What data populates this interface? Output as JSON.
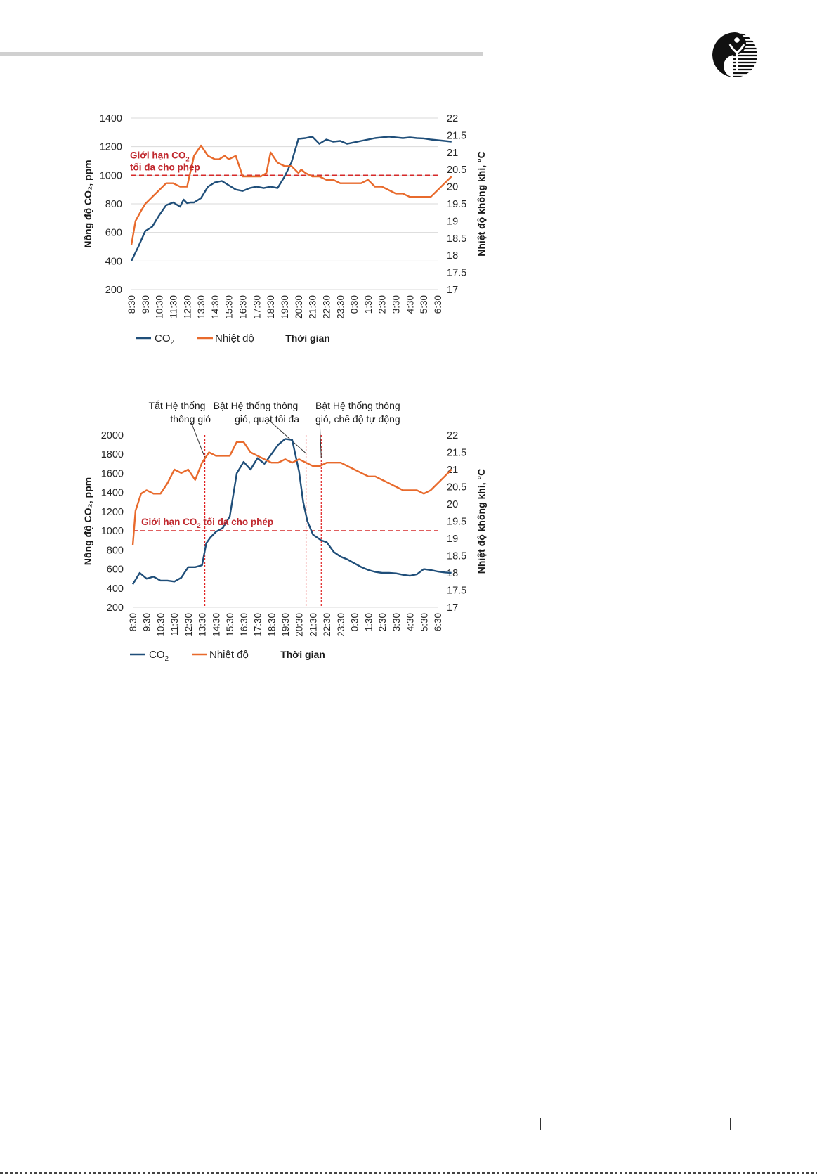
{
  "chart_data": [
    {
      "type": "line",
      "title": "",
      "xlabel": "Thời gian",
      "ylabel": "Nồng độ CO₂, ppm",
      "y2label": "Nhiệt độ không khí, °C",
      "ylim": [
        200,
        1400
      ],
      "yticks": [
        200,
        400,
        600,
        800,
        1000,
        1200,
        1400
      ],
      "y2lim": [
        17,
        22
      ],
      "y2ticks": [
        "17",
        "17.5",
        "18",
        "18.5",
        "19",
        "19.5",
        "20",
        "20.5",
        "21",
        "21.5",
        "22"
      ],
      "x_range": [
        "8:30",
        "6:30"
      ],
      "categories": [
        "8:30",
        "9:30",
        "10:30",
        "11:30",
        "12:30",
        "13:30",
        "14:30",
        "15:30",
        "16:30",
        "17:30",
        "18:30",
        "19:30",
        "20:30",
        "21:30",
        "22:30",
        "23:30",
        "0:30",
        "1:30",
        "2:30",
        "3:30",
        "4:30",
        "5:30",
        "6:30"
      ],
      "grid": "horizontal",
      "legend_position": "bottom-left",
      "limit_line": {
        "value": 1000,
        "axis": "left",
        "label_line1": "Giới hạn CO",
        "label_sub": "2",
        "label_line2": "tối đa cho phép"
      },
      "series": [
        {
          "name": "CO2",
          "axis": "left",
          "color": "#1f4e79",
          "x": [
            0,
            0.5,
            1,
            1.5,
            2,
            2.5,
            3,
            3.5,
            3.75,
            4,
            4.25,
            4.5,
            5,
            5.5,
            6,
            6.5,
            7,
            7.5,
            8,
            8.5,
            9,
            9.5,
            10,
            10.5,
            11,
            11.5,
            12,
            12.5,
            13,
            13.5,
            14,
            14.5,
            15,
            15.5,
            16,
            16.5,
            17,
            17.5,
            18,
            18.5,
            19,
            19.5,
            20,
            20.5,
            21,
            21.5,
            22,
            22.5,
            23
          ],
          "y": [
            400,
            500,
            610,
            640,
            720,
            790,
            810,
            780,
            830,
            805,
            810,
            810,
            840,
            920,
            950,
            960,
            930,
            900,
            890,
            910,
            920,
            910,
            920,
            910,
            990,
            1090,
            1255,
            1260,
            1270,
            1220,
            1250,
            1235,
            1240,
            1220,
            1230,
            1240,
            1250,
            1260,
            1265,
            1270,
            1265,
            1260,
            1265,
            1260,
            1258,
            1250,
            1245,
            1240,
            1235
          ]
        },
        {
          "name": "Nhiệt độ",
          "axis": "right",
          "color": "#e86a2c",
          "x": [
            0,
            0.3,
            0.7,
            1,
            1.5,
            2,
            2.5,
            3,
            3.5,
            4,
            4.5,
            5,
            5.5,
            6,
            6.3,
            6.7,
            7,
            7.5,
            8,
            8.5,
            9,
            9.3,
            9.7,
            10,
            10.5,
            11,
            11.5,
            12,
            12.2,
            12.5,
            13,
            13.5,
            14,
            14.5,
            15,
            15.5,
            16,
            16.5,
            17,
            17.5,
            18,
            18.5,
            19,
            19.5,
            20,
            20.5,
            21,
            21.5,
            22,
            22.5,
            23
          ],
          "y": [
            18.3,
            19.0,
            19.3,
            19.5,
            19.7,
            19.9,
            20.1,
            20.1,
            20.0,
            20.0,
            20.9,
            21.2,
            20.9,
            20.8,
            20.8,
            20.9,
            20.8,
            20.9,
            20.3,
            20.3,
            20.3,
            20.3,
            20.4,
            21.0,
            20.7,
            20.6,
            20.6,
            20.4,
            20.5,
            20.4,
            20.3,
            20.3,
            20.2,
            20.2,
            20.1,
            20.1,
            20.1,
            20.1,
            20.2,
            20.0,
            20.0,
            19.9,
            19.8,
            19.8,
            19.7,
            19.7,
            19.7,
            19.7,
            19.9,
            20.1,
            20.3
          ]
        }
      ]
    },
    {
      "type": "line",
      "title": "",
      "xlabel": "Thời gian",
      "ylabel": "Nồng độ CO₂, ppm",
      "y2label": "Nhiệt độ không khí, °C",
      "ylim": [
        200,
        2000
      ],
      "yticks": [
        200,
        400,
        600,
        800,
        1000,
        1200,
        1400,
        1600,
        1800,
        2000
      ],
      "y2lim": [
        17,
        22
      ],
      "y2ticks": [
        "17",
        "17.5",
        "18",
        "18.5",
        "19",
        "19.5",
        "20",
        "20.5",
        "21",
        "21.5",
        "22"
      ],
      "x_range": [
        "8:30",
        "6:30"
      ],
      "categories": [
        "8:30",
        "9:30",
        "10:30",
        "11:30",
        "12:30",
        "13:30",
        "14:30",
        "15:30",
        "16:30",
        "17:30",
        "18:30",
        "19:30",
        "20:30",
        "21:30",
        "22:30",
        "23:30",
        "0:30",
        "1:30",
        "2:30",
        "3:30",
        "4:30",
        "5:30",
        "6:30"
      ],
      "grid": "none",
      "legend_position": "bottom-left",
      "limit_line": {
        "value": 1000,
        "axis": "left",
        "label_line1": "Giới hạn CO",
        "label_sub": "2",
        "label_line2": " tối đa cho phép"
      },
      "events": [
        {
          "x": 5.2,
          "label_line1": "Tắt Hệ thống",
          "label_line2": "thông gió"
        },
        {
          "x": 12.5,
          "label_line1": "Bật Hệ thống thông",
          "label_line2": "gió, quạt tối đa"
        },
        {
          "x": 13.6,
          "label_line1": "Bật Hệ thống thông",
          "label_line2": "gió, chế độ tự động"
        }
      ],
      "series": [
        {
          "name": "CO2",
          "axis": "left",
          "color": "#1f4e79",
          "x": [
            0,
            0.5,
            1,
            1.5,
            2,
            2.5,
            3,
            3.5,
            4,
            4.5,
            5,
            5.3,
            5.6,
            6,
            6.5,
            7,
            7.5,
            8,
            8.5,
            9,
            9.5,
            10,
            10.5,
            11,
            11.5,
            12,
            12.3,
            12.6,
            13,
            13.3,
            13.6,
            14,
            14.5,
            15,
            15.5,
            16,
            16.5,
            17,
            17.5,
            18,
            18.5,
            19,
            19.5,
            20,
            20.5,
            21,
            21.5,
            22,
            22.5,
            23
          ],
          "y": [
            440,
            560,
            500,
            520,
            480,
            480,
            470,
            510,
            620,
            620,
            640,
            870,
            930,
            990,
            1030,
            1150,
            1600,
            1720,
            1640,
            1760,
            1700,
            1800,
            1900,
            1960,
            1950,
            1620,
            1300,
            1100,
            960,
            930,
            900,
            880,
            780,
            730,
            700,
            660,
            620,
            590,
            570,
            560,
            560,
            555,
            540,
            530,
            545,
            600,
            590,
            575,
            565,
            560
          ]
        },
        {
          "name": "Nhiệt độ",
          "axis": "right",
          "color": "#e86a2c",
          "x": [
            0,
            0.2,
            0.6,
            1,
            1.5,
            2,
            2.5,
            3,
            3.5,
            4,
            4.5,
            5,
            5.5,
            6,
            6.5,
            7,
            7.5,
            8,
            8.5,
            9,
            9.5,
            10,
            10.5,
            11,
            11.5,
            12,
            12.5,
            13,
            13.5,
            14,
            14.5,
            15,
            15.5,
            16,
            16.5,
            17,
            17.5,
            18,
            18.5,
            19,
            19.5,
            20,
            20.5,
            21,
            21.5,
            22,
            22.5,
            23
          ],
          "y": [
            18.8,
            19.8,
            20.3,
            20.4,
            20.3,
            20.3,
            20.6,
            21.0,
            20.9,
            21.0,
            20.7,
            21.2,
            21.5,
            21.4,
            21.4,
            21.4,
            21.8,
            21.8,
            21.5,
            21.4,
            21.3,
            21.2,
            21.2,
            21.3,
            21.2,
            21.3,
            21.2,
            21.1,
            21.1,
            21.2,
            21.2,
            21.2,
            21.1,
            21.0,
            20.9,
            20.8,
            20.8,
            20.7,
            20.6,
            20.5,
            20.4,
            20.4,
            20.4,
            20.3,
            20.4,
            20.6,
            20.8,
            21.0
          ]
        }
      ]
    }
  ]
}
